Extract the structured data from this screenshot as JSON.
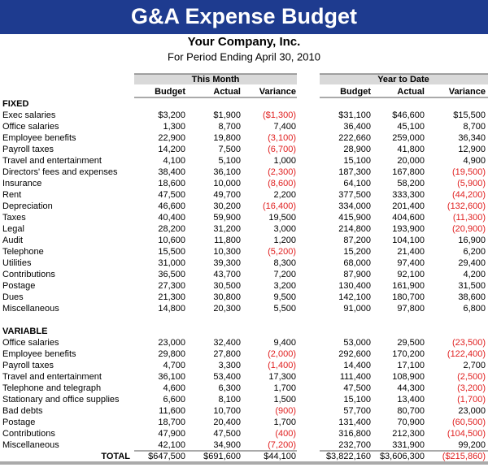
{
  "header": {
    "title": "G&A Expense Budget",
    "company": "Your Company, Inc.",
    "period": "For Period Ending April 30, 2010"
  },
  "table": {
    "groups": [
      "This Month",
      "Year to Date"
    ],
    "columns": [
      "Budget",
      "Actual",
      "Variance",
      "Budget",
      "Actual",
      "Variance"
    ],
    "sections": [
      {
        "name": "FIXED",
        "rows": [
          [
            "Exec salaries",
            "$3,200",
            "$1,900",
            "($1,300)",
            "$31,100",
            "$46,600",
            "$15,500"
          ],
          [
            "Office salaries",
            "1,300",
            "8,700",
            "7,400",
            "36,400",
            "45,100",
            "8,700"
          ],
          [
            "Employee benefits",
            "22,900",
            "19,800",
            "(3,100)",
            "222,660",
            "259,000",
            "36,340"
          ],
          [
            "Payroll taxes",
            "14,200",
            "7,500",
            "(6,700)",
            "28,900",
            "41,800",
            "12,900"
          ],
          [
            "Travel and entertainment",
            "4,100",
            "5,100",
            "1,000",
            "15,100",
            "20,000",
            "4,900"
          ],
          [
            "Directors' fees and expenses",
            "38,400",
            "36,100",
            "(2,300)",
            "187,300",
            "167,800",
            "(19,500)"
          ],
          [
            "Insurance",
            "18,600",
            "10,000",
            "(8,600)",
            "64,100",
            "58,200",
            "(5,900)"
          ],
          [
            "Rent",
            "47,500",
            "49,700",
            "2,200",
            "377,500",
            "333,300",
            "(44,200)"
          ],
          [
            "Depreciation",
            "46,600",
            "30,200",
            "(16,400)",
            "334,000",
            "201,400",
            "(132,600)"
          ],
          [
            "Taxes",
            "40,400",
            "59,900",
            "19,500",
            "415,900",
            "404,600",
            "(11,300)"
          ],
          [
            "Legal",
            "28,200",
            "31,200",
            "3,000",
            "214,800",
            "193,900",
            "(20,900)"
          ],
          [
            "Audit",
            "10,600",
            "11,800",
            "1,200",
            "87,200",
            "104,100",
            "16,900"
          ],
          [
            "Telephone",
            "15,500",
            "10,300",
            "(5,200)",
            "15,200",
            "21,400",
            "6,200"
          ],
          [
            "Utilities",
            "31,000",
            "39,300",
            "8,300",
            "68,000",
            "97,400",
            "29,400"
          ],
          [
            "Contributions",
            "36,500",
            "43,700",
            "7,200",
            "87,900",
            "92,100",
            "4,200"
          ],
          [
            "Postage",
            "27,300",
            "30,500",
            "3,200",
            "130,400",
            "161,900",
            "31,500"
          ],
          [
            "Dues",
            "21,300",
            "30,800",
            "9,500",
            "142,100",
            "180,700",
            "38,600"
          ],
          [
            "Miscellaneous",
            "14,800",
            "20,300",
            "5,500",
            "91,000",
            "97,800",
            "6,800"
          ]
        ]
      },
      {
        "name": "VARIABLE",
        "rows": [
          [
            "Office salaries",
            "23,000",
            "32,400",
            "9,400",
            "53,000",
            "29,500",
            "(23,500)"
          ],
          [
            "Employee benefits",
            "29,800",
            "27,800",
            "(2,000)",
            "292,600",
            "170,200",
            "(122,400)"
          ],
          [
            "Payroll taxes",
            "4,700",
            "3,300",
            "(1,400)",
            "14,400",
            "17,100",
            "2,700"
          ],
          [
            "Travel and entertainment",
            "36,100",
            "53,400",
            "17,300",
            "111,400",
            "108,900",
            "(2,500)"
          ],
          [
            "Telephone and telegraph",
            "4,600",
            "6,300",
            "1,700",
            "47,500",
            "44,300",
            "(3,200)"
          ],
          [
            "Stationary and office supplies",
            "6,600",
            "8,100",
            "1,500",
            "15,100",
            "13,400",
            "(1,700)"
          ],
          [
            "Bad debts",
            "11,600",
            "10,700",
            "(900)",
            "57,700",
            "80,700",
            "23,000"
          ],
          [
            "Postage",
            "18,700",
            "20,400",
            "1,700",
            "131,400",
            "70,900",
            "(60,500)"
          ],
          [
            "Contributions",
            "47,900",
            "47,500",
            "(400)",
            "316,800",
            "212,300",
            "(104,500)"
          ],
          [
            "Miscellaneous",
            "42,100",
            "34,900",
            "(7,200)",
            "232,700",
            "331,900",
            "99,200"
          ]
        ]
      }
    ],
    "total": [
      "TOTAL",
      "$647,500",
      "$691,600",
      "$44,100",
      "$3,822,160",
      "$3,606,300",
      "($215,860)"
    ]
  }
}
